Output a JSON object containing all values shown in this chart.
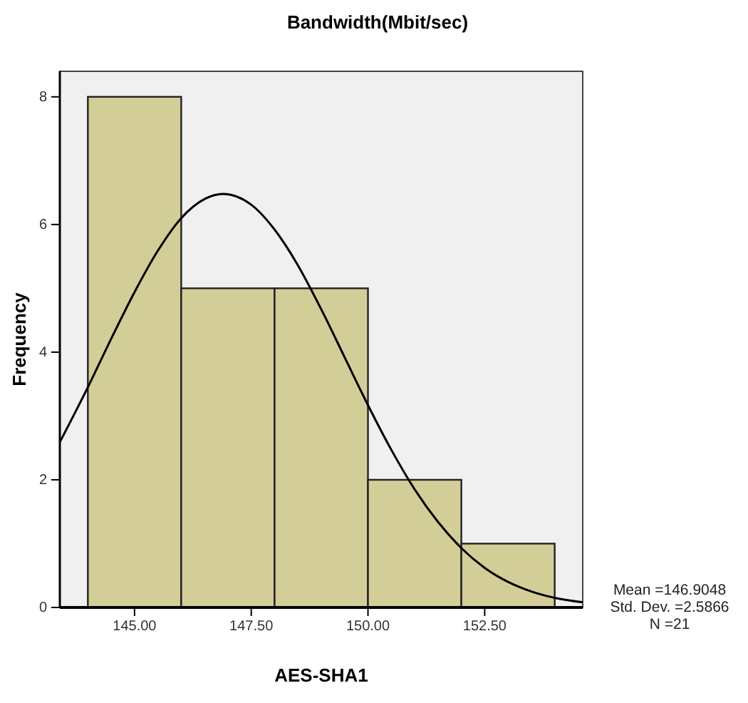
{
  "chart_data": {
    "type": "histogram",
    "title": "Bandwidth(Mbit/sec)",
    "xlabel": "AES-SHA1",
    "ylabel": "Frequency",
    "bins": [
      144,
      146,
      148,
      150,
      152,
      154
    ],
    "values": [
      8,
      5,
      5,
      2,
      1
    ],
    "color": "#d3ce98",
    "xlim": [
      143.4,
      154.6
    ],
    "xticks": [
      {
        "value": 145,
        "label": "145.00"
      },
      {
        "value": 147.5,
        "label": "147.50"
      },
      {
        "value": 150,
        "label": "150.00"
      },
      {
        "value": 152.5,
        "label": "152.50"
      }
    ],
    "ylim": [
      0,
      8.4
    ],
    "yticks": [
      0,
      2,
      4,
      6,
      8
    ],
    "grid": false,
    "series": [
      {
        "type": "line",
        "color": "#000000",
        "x": [
          143.4,
          144,
          144.5,
          145,
          145.5,
          146,
          146.5,
          146.9,
          147.5,
          148,
          148.5,
          149,
          149.5,
          150,
          150.5,
          151,
          151.5,
          152,
          152.5,
          153,
          153.5,
          154,
          154.6
        ],
        "values": [
          2.59,
          3.45,
          4.21,
          4.94,
          5.59,
          6.1,
          6.4,
          6.48,
          6.31,
          5.92,
          5.36,
          4.67,
          3.92,
          3.17,
          2.47,
          1.85,
          1.34,
          0.93,
          0.62,
          0.4,
          0.25,
          0.15,
          0.08
        ]
      }
    ],
    "annotations": [
      "Mean =146.9048",
      "Std. Dev. =2.5866",
      "N =21"
    ]
  }
}
